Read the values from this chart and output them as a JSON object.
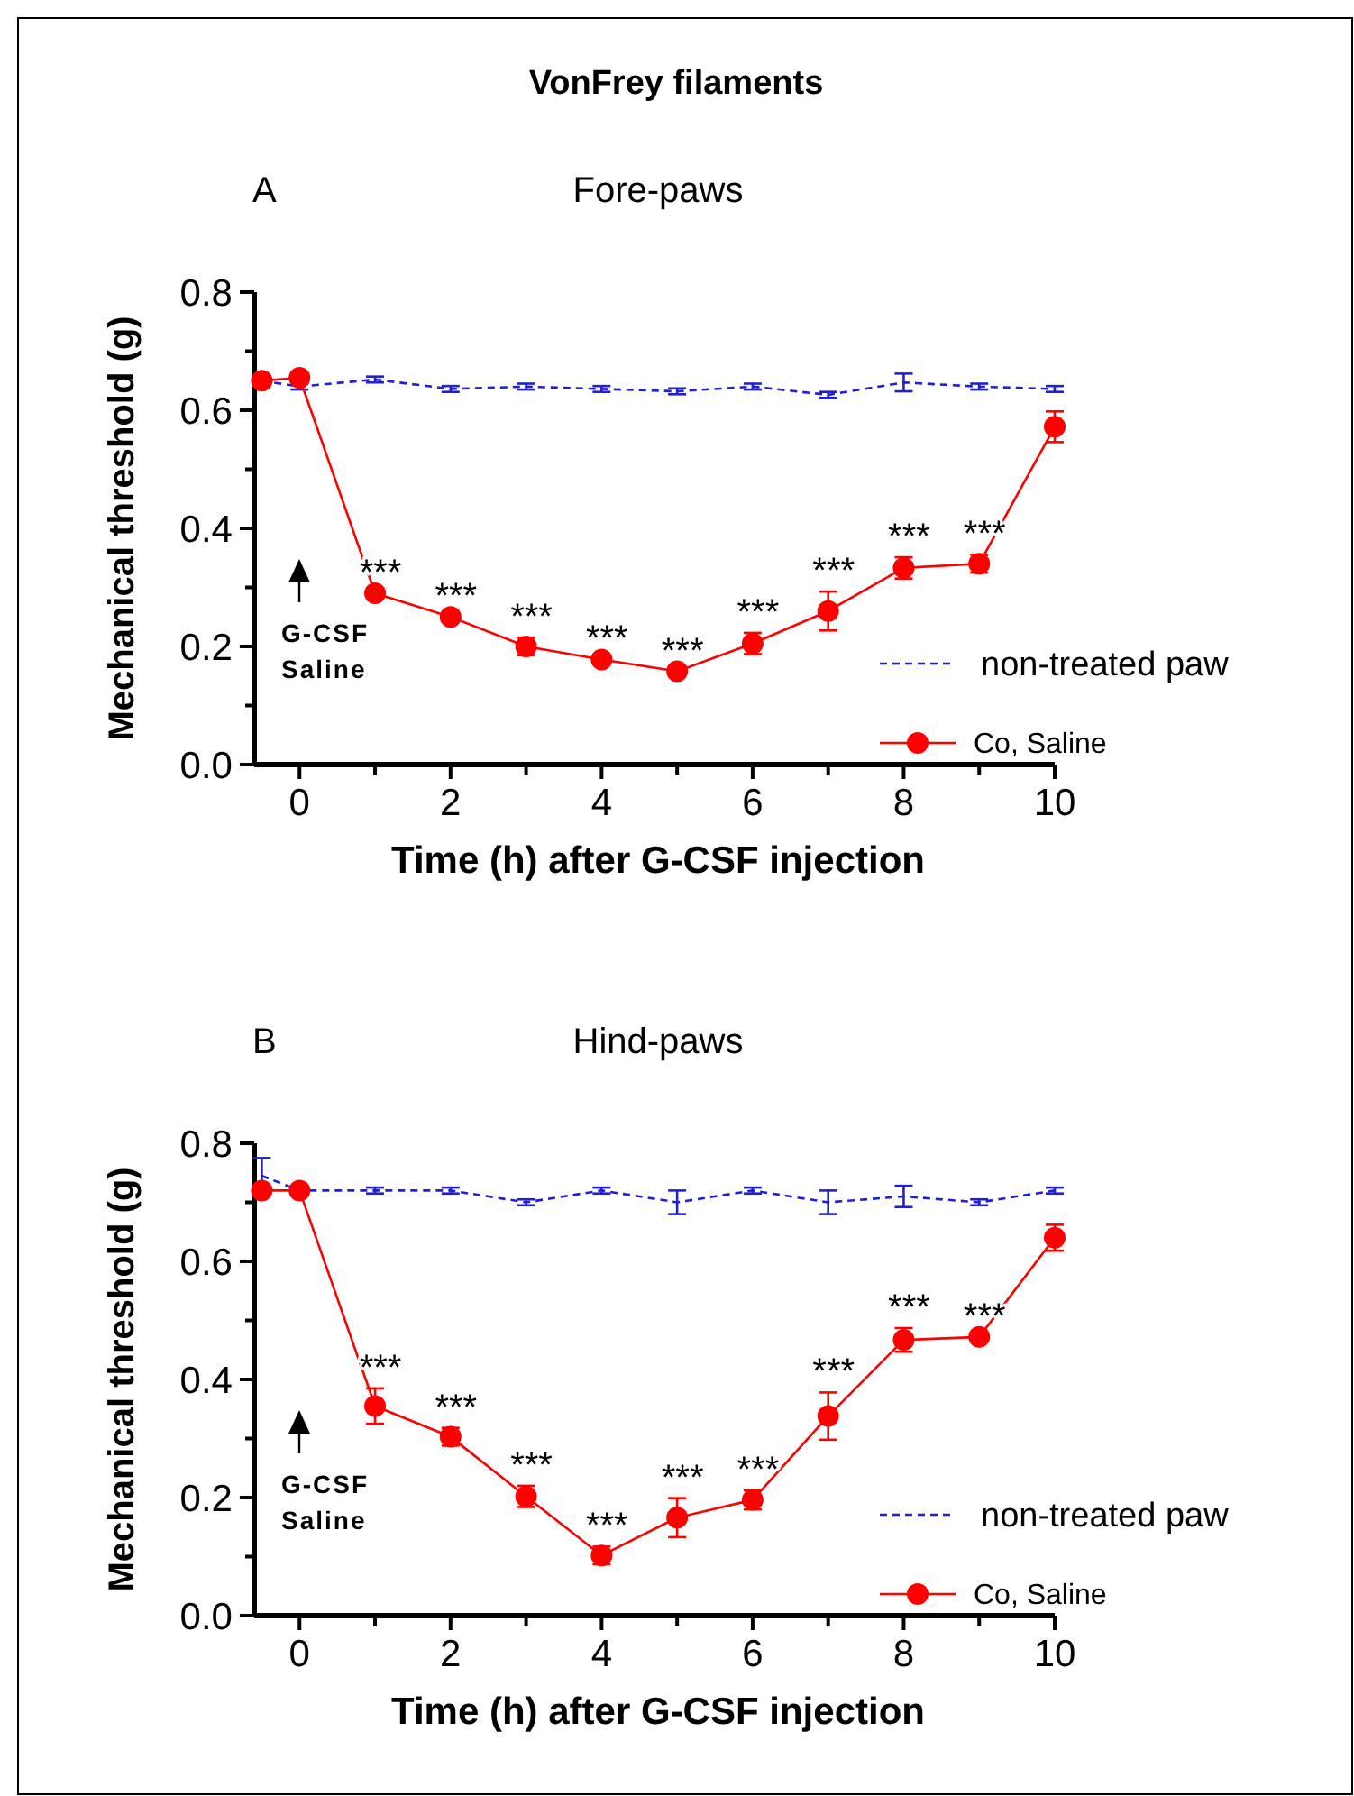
{
  "chart_data": [
    {
      "type": "line",
      "title": "VonFrey filaments",
      "subtitle": "Fore-paws",
      "xlabel": "Time (h) after G-CSF injection",
      "ylabel": "Mechanical threshold (g)",
      "x": [
        -0.5,
        0,
        1,
        2,
        3,
        4,
        5,
        6,
        7,
        8,
        9,
        10
      ],
      "series": [
        {
          "name": "non-treated paw",
          "color": "#2020d0",
          "marker": "none",
          "line_style": "dashed",
          "values": [
            0.65,
            0.64,
            0.652,
            0.636,
            0.64,
            0.636,
            0.632,
            0.64,
            0.626,
            0.647,
            0.64,
            0.636
          ],
          "errors": [
            null,
            0.005,
            0.005,
            0.005,
            0.005,
            0.005,
            0.005,
            0.005,
            0.005,
            0.015,
            0.005,
            0.005
          ]
        },
        {
          "name": "Co, Saline",
          "color": "#ff0000",
          "marker": "circle",
          "line_style": "solid",
          "values": [
            0.65,
            0.655,
            0.29,
            0.25,
            0.2,
            0.178,
            0.158,
            0.205,
            0.26,
            0.333,
            0.34,
            0.572
          ],
          "errors": [
            null,
            null,
            null,
            null,
            0.015,
            null,
            null,
            0.018,
            0.033,
            0.018,
            0.015,
            0.026
          ]
        }
      ],
      "xlim": [
        -0.6,
        10
      ],
      "xticks": [
        0,
        {
          "value": 1,
          "label": null
        },
        2,
        {
          "value": 3,
          "label": null
        },
        4,
        {
          "value": 5,
          "label": null
        },
        6,
        {
          "value": 7,
          "label": null
        },
        8,
        {
          "value": 9,
          "label": null
        },
        10
      ],
      "ylim": [
        0,
        0.8
      ],
      "yticks": [
        {
          "value": 0,
          "label": "0.0"
        },
        {
          "value": 0.1,
          "label": null
        },
        {
          "value": 0.2,
          "label": "0.2"
        },
        {
          "value": 0.3,
          "label": null
        },
        {
          "value": 0.4,
          "label": "0.4"
        },
        {
          "value": 0.5,
          "label": null
        },
        {
          "value": 0.6,
          "label": "0.6"
        },
        {
          "value": 0.7,
          "label": null
        },
        {
          "value": 0.8,
          "label": "0.8"
        }
      ],
      "grid": false,
      "legend": "bottom right",
      "annotations": [
        "A",
        "G-CSF Saline",
        {
          "text": "***",
          "x": 1,
          "y": 0.29
        },
        {
          "text": "***",
          "x": 2,
          "y": 0.25
        },
        {
          "text": "***",
          "x": 3,
          "y": 0.2
        },
        {
          "text": "***",
          "x": 4,
          "y": 0.178
        },
        {
          "text": "***",
          "x": 5,
          "y": 0.158
        },
        {
          "text": "***",
          "x": 6,
          "y": 0.205
        },
        {
          "text": "***",
          "x": 7,
          "y": 0.26
        },
        {
          "text": "***",
          "x": 8,
          "y": 0.333
        },
        {
          "text": "***",
          "x": 9,
          "y": 0.34
        }
      ]
    },
    {
      "type": "line",
      "subtitle": "Hind-paws",
      "xlabel": "Time (h) after G-CSF injection",
      "ylabel": "Mechanical threshold (g)",
      "x": [
        -0.5,
        0,
        1,
        2,
        3,
        4,
        5,
        6,
        7,
        8,
        9,
        10
      ],
      "series": [
        {
          "name": "non-treated paw",
          "color": "#2020d0",
          "marker": "none",
          "line_style": "dashed",
          "values": [
            0.745,
            0.72,
            0.72,
            0.72,
            0.7,
            0.72,
            0.7,
            0.72,
            0.7,
            0.71,
            0.7,
            0.72
          ],
          "errors": [
            0.03,
            null,
            0.005,
            0.005,
            0.005,
            0.005,
            0.02,
            0.005,
            0.02,
            0.018,
            0.005,
            0.005
          ]
        },
        {
          "name": "Co, Saline",
          "color": "#ff0000",
          "marker": "circle",
          "line_style": "solid",
          "values": [
            0.72,
            0.72,
            0.355,
            0.303,
            0.202,
            0.102,
            0.166,
            0.196,
            0.338,
            0.467,
            0.472,
            0.64
          ],
          "errors": [
            null,
            null,
            0.03,
            0.015,
            0.018,
            0.015,
            0.033,
            0.016,
            0.04,
            0.02,
            null,
            0.022
          ]
        }
      ],
      "xlim": [
        -0.6,
        10
      ],
      "xticks": [
        0,
        {
          "value": 1,
          "label": null
        },
        2,
        {
          "value": 3,
          "label": null
        },
        4,
        {
          "value": 5,
          "label": null
        },
        6,
        {
          "value": 7,
          "label": null
        },
        8,
        {
          "value": 9,
          "label": null
        },
        10
      ],
      "ylim": [
        0,
        0.8
      ],
      "yticks": [
        {
          "value": 0,
          "label": "0.0"
        },
        {
          "value": 0.1,
          "label": null
        },
        {
          "value": 0.2,
          "label": "0.2"
        },
        {
          "value": 0.3,
          "label": null
        },
        {
          "value": 0.4,
          "label": "0.4"
        },
        {
          "value": 0.5,
          "label": null
        },
        {
          "value": 0.6,
          "label": "0.6"
        },
        {
          "value": 0.7,
          "label": null
        },
        {
          "value": 0.8,
          "label": "0.8"
        }
      ],
      "grid": false,
      "legend": "bottom right",
      "annotations": [
        "B",
        "G-CSF Saline",
        {
          "text": "***",
          "x": 1,
          "y": 0.355
        },
        {
          "text": "***",
          "x": 2,
          "y": 0.303
        },
        {
          "text": "***",
          "x": 3,
          "y": 0.202
        },
        {
          "text": "***",
          "x": 4,
          "y": 0.102
        },
        {
          "text": "***",
          "x": 5,
          "y": 0.166
        },
        {
          "text": "***",
          "x": 6,
          "y": 0.196
        },
        {
          "text": "***",
          "x": 7,
          "y": 0.338
        },
        {
          "text": "***",
          "x": 8,
          "y": 0.467
        },
        {
          "text": "***",
          "x": 9,
          "y": 0.472
        }
      ]
    }
  ]
}
